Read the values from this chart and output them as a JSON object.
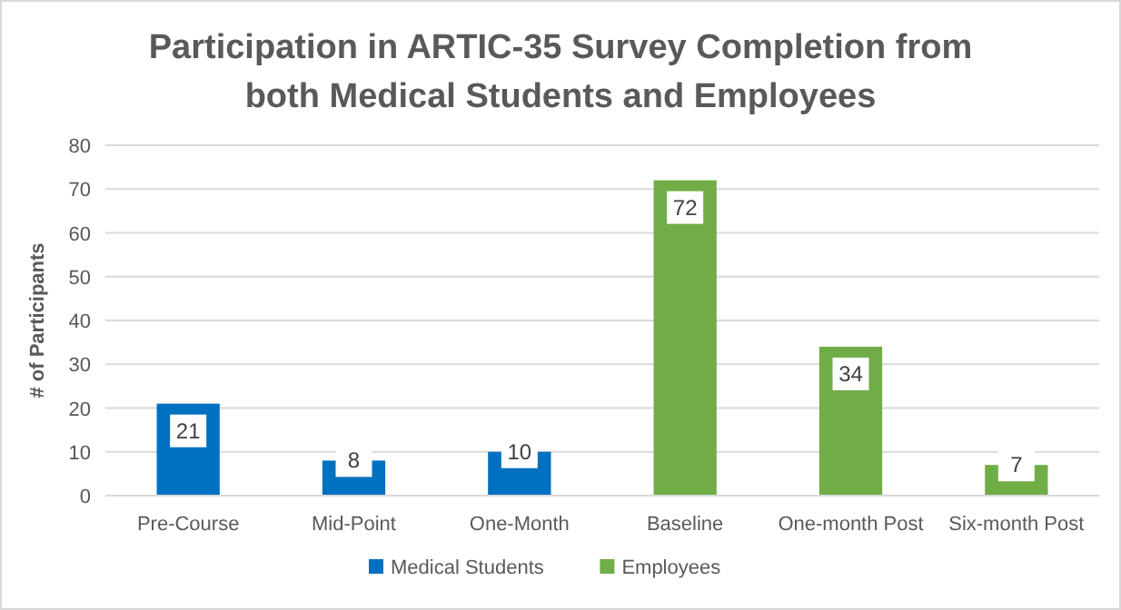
{
  "chart_data": {
    "type": "bar",
    "title": "Participation in ARTIC-35 Survey Completion from both Medical Students and Employees",
    "ylabel": "# of Participants",
    "categories": [
      "Pre-Course",
      "Mid-Point",
      "One-Month",
      "Baseline",
      "One-month Post",
      "Six-month Post"
    ],
    "series": [
      {
        "name": "Medical Students",
        "color": "#0070c0",
        "values": [
          21,
          8,
          10,
          null,
          null,
          null
        ]
      },
      {
        "name": "Employees",
        "color": "#70ad47",
        "values": [
          null,
          null,
          null,
          72,
          34,
          7
        ]
      }
    ],
    "ylim": [
      0,
      80
    ],
    "yticks": [
      0,
      10,
      20,
      30,
      40,
      50,
      60,
      70,
      80
    ],
    "grid": "y",
    "legend": "bottom",
    "data_labels": true
  }
}
